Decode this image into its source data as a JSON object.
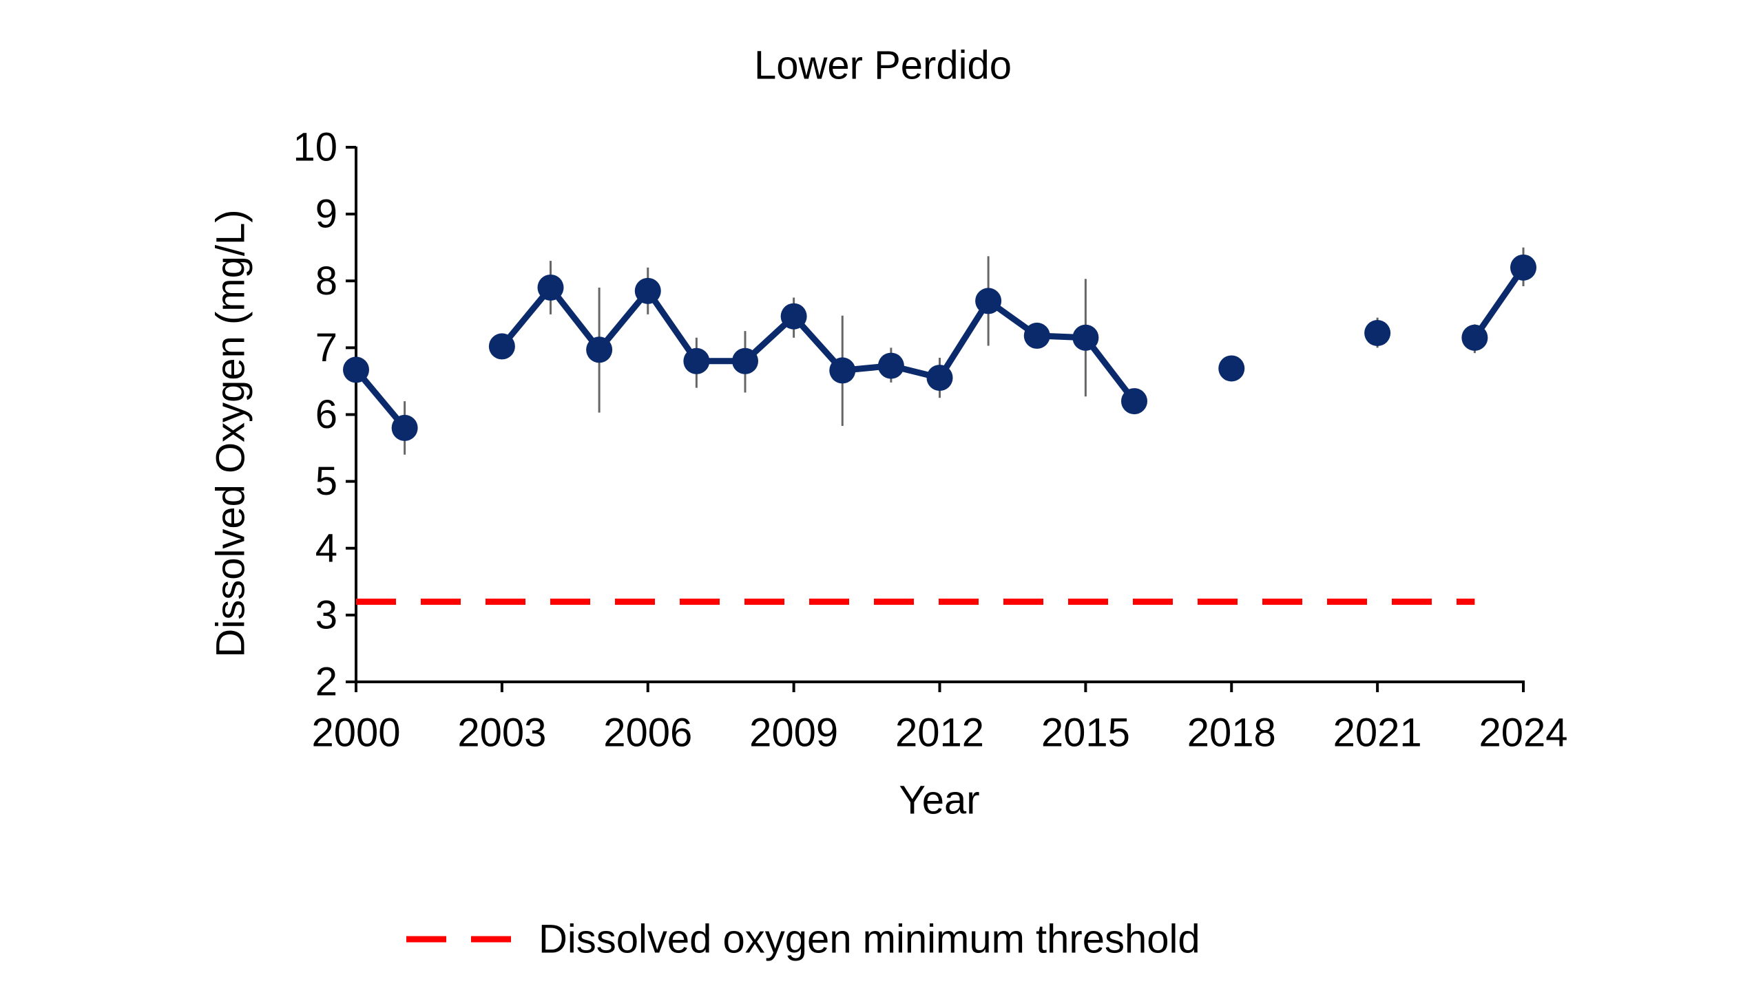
{
  "chart_data": {
    "type": "line",
    "title": "Lower Perdido",
    "xlabel": "Year",
    "ylabel": "Dissolved Oxygen (mg/L)",
    "xlim": [
      2000,
      2024
    ],
    "ylim": [
      2,
      10
    ],
    "x_ticks": [
      "2000",
      "2003",
      "2006",
      "2009",
      "2012",
      "2015",
      "2018",
      "2021",
      "2024"
    ],
    "y_ticks": [
      "2",
      "3",
      "4",
      "5",
      "6",
      "7",
      "8",
      "9",
      "10"
    ],
    "grid": false,
    "legend_placement": "bottom",
    "series": [
      {
        "color": "#0a2a6b",
        "points": [
          {
            "x": 2000,
            "y": 6.67,
            "err_low": 6.67,
            "err_high": 6.67
          },
          {
            "x": 2001,
            "y": 5.8,
            "err_low": 5.4,
            "err_high": 6.2
          },
          {
            "x": 2003,
            "y": 7.02,
            "err_low": 6.9,
            "err_high": 7.15
          },
          {
            "x": 2004,
            "y": 7.9,
            "err_low": 7.5,
            "err_high": 8.3
          },
          {
            "x": 2005,
            "y": 6.97,
            "err_low": 6.03,
            "err_high": 7.9
          },
          {
            "x": 2006,
            "y": 7.85,
            "err_low": 7.5,
            "err_high": 8.2
          },
          {
            "x": 2007,
            "y": 6.8,
            "err_low": 6.4,
            "err_high": 7.15
          },
          {
            "x": 2008,
            "y": 6.8,
            "err_low": 6.33,
            "err_high": 7.25
          },
          {
            "x": 2009,
            "y": 7.47,
            "err_low": 7.15,
            "err_high": 7.75
          },
          {
            "x": 2010,
            "y": 6.66,
            "err_low": 5.83,
            "err_high": 7.48
          },
          {
            "x": 2011,
            "y": 6.73,
            "err_low": 6.48,
            "err_high": 7.0
          },
          {
            "x": 2012,
            "y": 6.55,
            "err_low": 6.25,
            "err_high": 6.85
          },
          {
            "x": 2013,
            "y": 7.7,
            "err_low": 7.03,
            "err_high": 8.37
          },
          {
            "x": 2014,
            "y": 7.18,
            "err_low": 7.05,
            "err_high": 7.3
          },
          {
            "x": 2015,
            "y": 7.15,
            "err_low": 6.27,
            "err_high": 8.03
          },
          {
            "x": 2016,
            "y": 6.2,
            "err_low": 6.2,
            "err_high": 6.2
          },
          {
            "x": 2018,
            "y": 6.69,
            "err_low": 6.69,
            "err_high": 6.69
          },
          {
            "x": 2021,
            "y": 7.22,
            "err_low": 7.0,
            "err_high": 7.45
          },
          {
            "x": 2023,
            "y": 7.15,
            "err_low": 6.92,
            "err_high": 7.35
          },
          {
            "x": 2024,
            "y": 8.2,
            "err_low": 7.92,
            "err_high": 8.5
          }
        ]
      }
    ],
    "threshold": {
      "name": "Dissolved oxygen minimum threshold",
      "value": 3.2,
      "x_start": 2000,
      "x_end": 2023,
      "color": "#ff0000",
      "style": "dashed"
    }
  }
}
